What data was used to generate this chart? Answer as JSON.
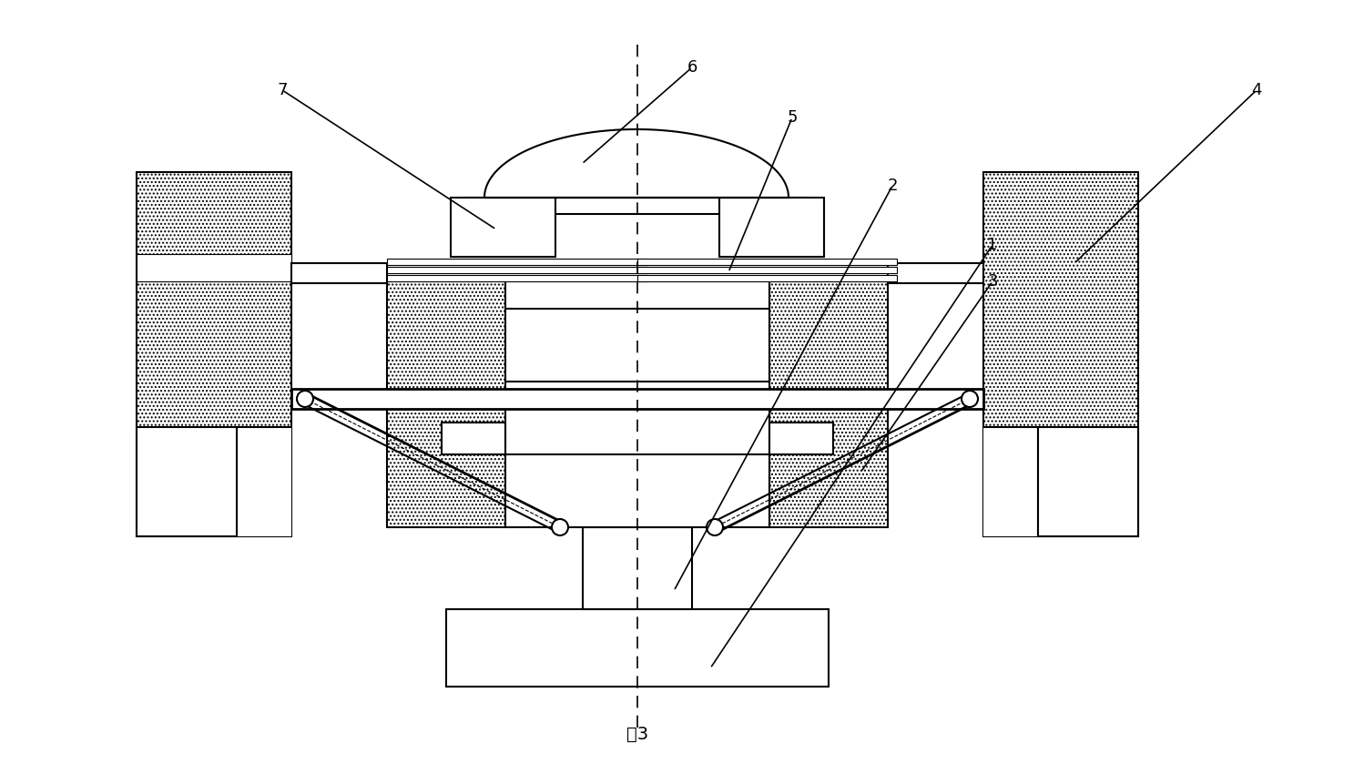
{
  "title": "图3",
  "bg_color": "#ffffff",
  "lw": 1.5,
  "lw_thin": 0.8,
  "lw_thick": 2.0
}
